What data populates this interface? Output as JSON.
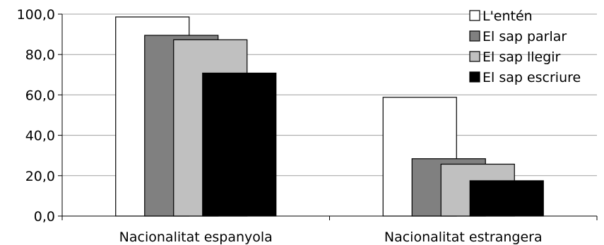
{
  "chart_data": {
    "type": "bar",
    "categories": [
      "Nacionalitat espanyola",
      "Nacionalitat estrangera"
    ],
    "series": [
      {
        "name": "L'entén",
        "color": "#ffffff",
        "values": [
          98.6,
          58.8
        ]
      },
      {
        "name": "El sap parlar",
        "color": "#808080",
        "values": [
          89.5,
          28.4
        ]
      },
      {
        "name": "El sap llegir",
        "color": "#c0c0c0",
        "values": [
          87.3,
          25.7
        ]
      },
      {
        "name": "El sap escriure",
        "color": "#000000",
        "values": [
          70.8,
          17.5
        ]
      }
    ],
    "ylim": [
      0,
      100
    ],
    "yticks": [
      0,
      20,
      40,
      60,
      80,
      100
    ],
    "ytick_labels": [
      "0,0",
      "20,0",
      "40,0",
      "60,0",
      "80,0",
      "100,0"
    ],
    "grid": true,
    "legend_position": "top-right"
  }
}
